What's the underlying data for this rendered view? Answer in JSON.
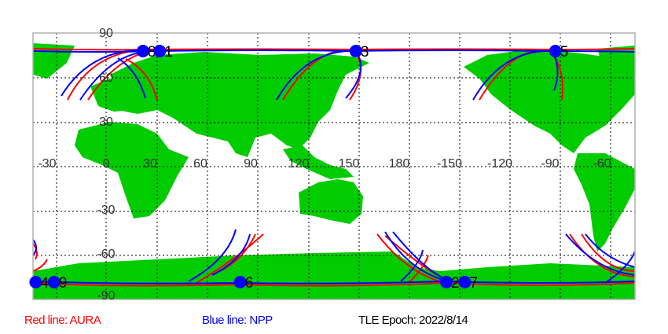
{
  "map": {
    "lon_ticks": [
      "-30",
      "0",
      "30",
      "60",
      "90",
      "120",
      "150",
      "180",
      "-150",
      "-120",
      "-90",
      "-60"
    ],
    "lat_ticks": [
      "90",
      "60",
      "30",
      "0",
      "-30",
      "-60",
      "-90"
    ],
    "colors": {
      "land": "#00cc00",
      "ocean": "#ffffff",
      "aura_track": "#ff0000",
      "npp_track": "#0000ff",
      "marker": "#0000ff"
    },
    "points": [
      {
        "label": "8",
        "lon": 22,
        "lat": 78
      },
      {
        "label": "1",
        "lon": 32,
        "lat": 78
      },
      {
        "label": "3",
        "lon": 149,
        "lat": 78
      },
      {
        "label": "5",
        "lon": -92,
        "lat": 78
      },
      {
        "label": "4",
        "lon": -42,
        "lat": -78
      },
      {
        "label": "9",
        "lon": -31,
        "lat": -78
      },
      {
        "label": "6",
        "lon": 80,
        "lat": -78
      },
      {
        "label": "2",
        "lon": -157,
        "lat": -78
      },
      {
        "label": "7",
        "lon": -146,
        "lat": -78
      }
    ]
  },
  "legend": {
    "aura": "Red line: AURA",
    "npp": "Blue line: NPP",
    "epoch": "TLE Epoch: 2022/8/14"
  }
}
